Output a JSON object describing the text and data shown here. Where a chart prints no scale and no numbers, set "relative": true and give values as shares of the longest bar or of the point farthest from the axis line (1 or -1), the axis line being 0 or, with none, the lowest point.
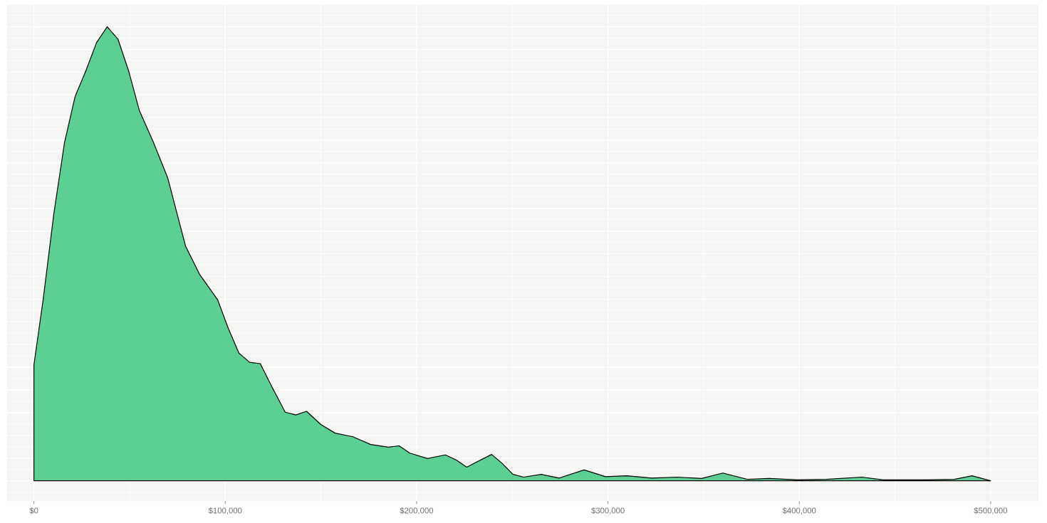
{
  "chart_data": {
    "type": "area",
    "relative": true,
    "series": [
      {
        "color": "#5ccf94",
        "x": [
          0,
          4836,
          10417,
          15997,
          21577,
          27157,
          32738,
          38318,
          43898,
          49479,
          55059,
          62499,
          69940,
          79240,
          86681,
          95981,
          101561,
          107142,
          112722,
          118302,
          123883,
          131323,
          136903,
          142484,
          149924,
          157364,
          166665,
          175965,
          185266,
          190846,
          196426,
          205727,
          215027,
          220608,
          226188,
          231768,
          239209,
          244789,
          250369,
          255950,
          265250,
          274551,
          287571,
          298732,
          309892,
          322913,
          335934,
          348954,
          360115,
          373136,
          384296,
          399177,
          414057,
          432658,
          443819,
          466140,
          481020,
          490321,
          500000
        ],
        "values": [
          0.255,
          0.399,
          0.588,
          0.745,
          0.847,
          0.903,
          0.965,
          1.0,
          0.973,
          0.903,
          0.816,
          0.745,
          0.667,
          0.517,
          0.454,
          0.399,
          0.336,
          0.281,
          0.261,
          0.258,
          0.211,
          0.151,
          0.145,
          0.153,
          0.124,
          0.105,
          0.097,
          0.08,
          0.074,
          0.077,
          0.061,
          0.049,
          0.057,
          0.046,
          0.03,
          0.042,
          0.058,
          0.038,
          0.014,
          0.008,
          0.014,
          0.006,
          0.024,
          0.009,
          0.011,
          0.006,
          0.008,
          0.005,
          0.017,
          0.003,
          0.005,
          0.002,
          0.003,
          0.008,
          0.002,
          0.002,
          0.003,
          0.011,
          0
        ]
      }
    ],
    "xlim": [
      -14000,
      525000
    ],
    "xticks": [
      {
        "value": 0,
        "label": "$0"
      },
      {
        "value": 100000,
        "label": "$100,000"
      },
      {
        "value": 200000,
        "label": "$200,000"
      },
      {
        "value": 300000,
        "label": "$300,000"
      },
      {
        "value": 400000,
        "label": "$400,000"
      },
      {
        "value": 500000,
        "label": "$500,000"
      }
    ],
    "grid": true,
    "marker": "none",
    "line_style": "solid"
  }
}
